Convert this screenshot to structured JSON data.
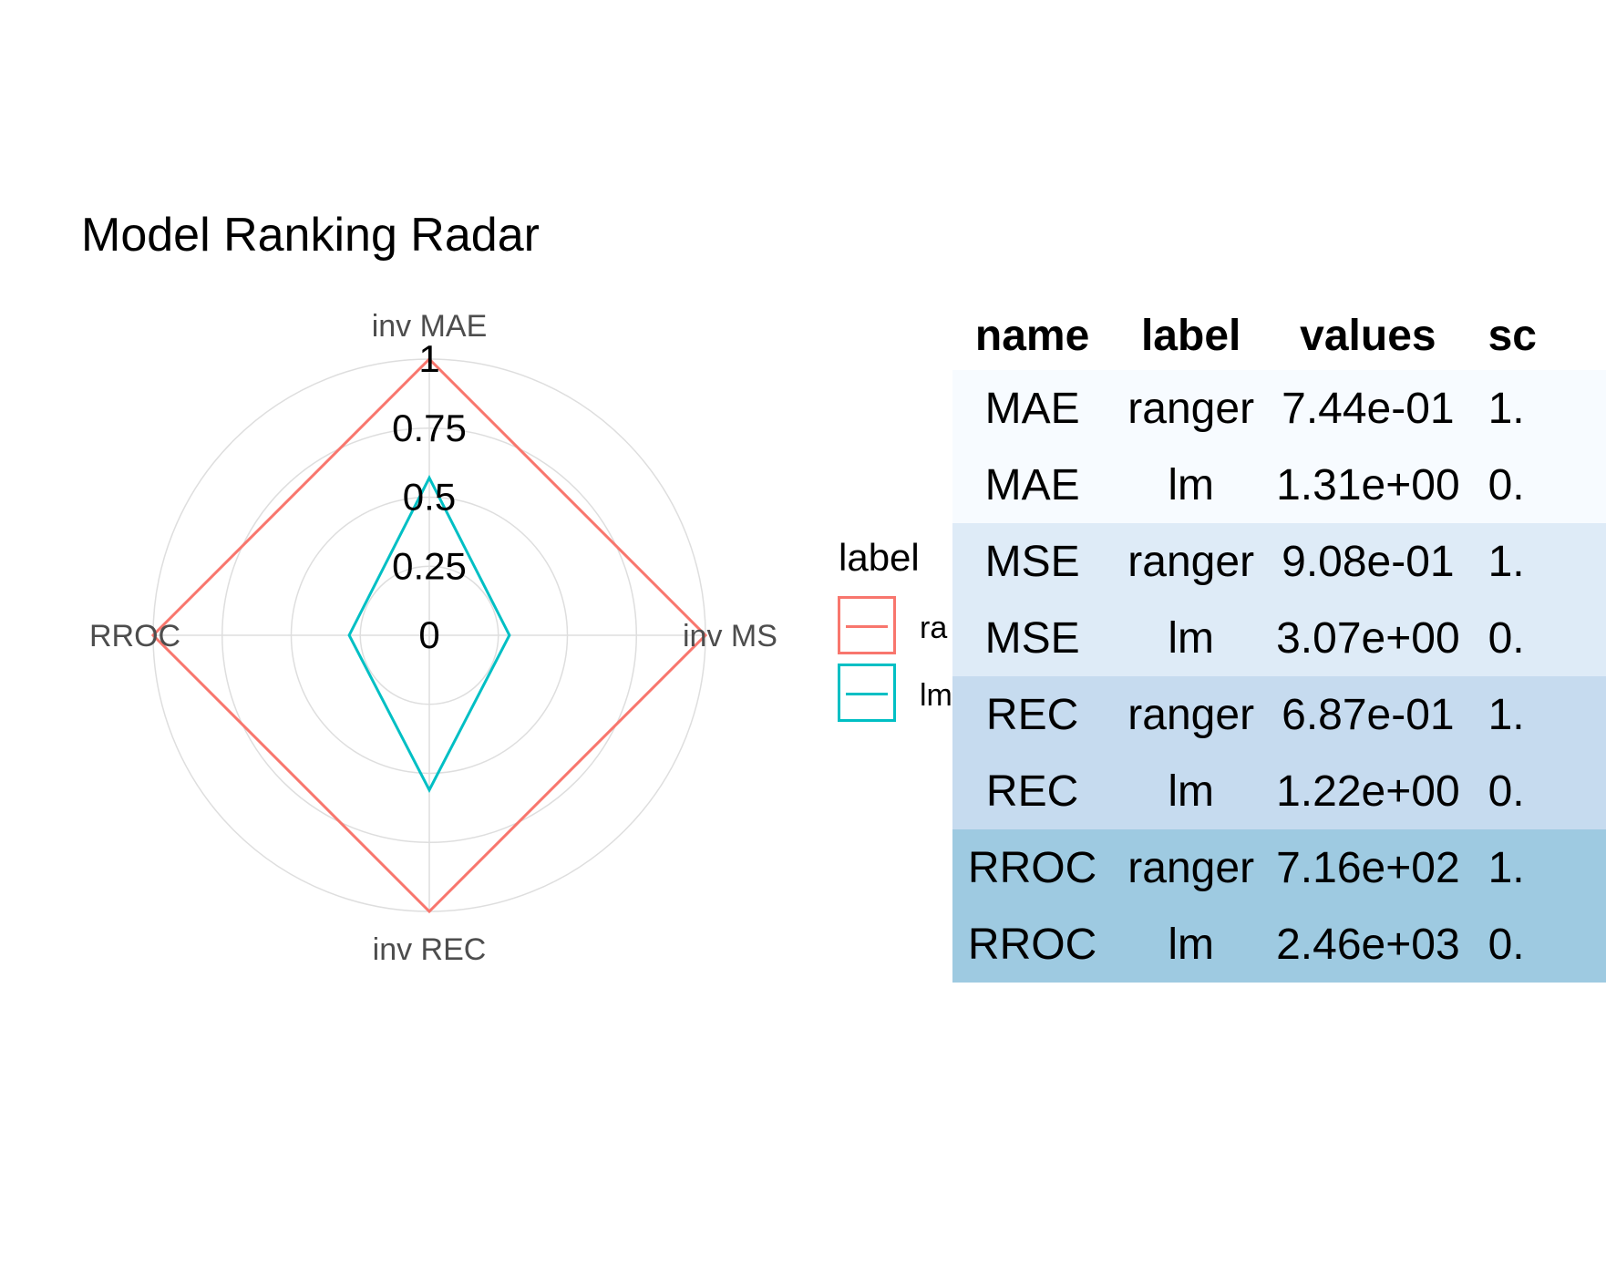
{
  "chart_data": [
    {
      "type": "radar",
      "title": "Model Ranking Radar",
      "axes": [
        "inv MAE",
        "inv MS",
        "inv REC",
        "RROC"
      ],
      "radial_ticks": [
        "0",
        "0.25",
        "0.5",
        "0.75",
        "1"
      ],
      "radial_range": [
        0,
        1
      ],
      "grid": true,
      "legend": {
        "title": "label",
        "position": "right",
        "entries": [
          "ra",
          "lm"
        ]
      },
      "series": [
        {
          "name": "ra",
          "color": "#F8766D",
          "values": [
            1.0,
            1.0,
            1.0,
            1.0
          ]
        },
        {
          "name": "lm",
          "color": "#00BFC4",
          "values": [
            0.57,
            0.29,
            0.56,
            0.29
          ]
        }
      ]
    },
    {
      "type": "table",
      "columns": [
        "name",
        "label",
        "values",
        "sc"
      ],
      "rows": [
        {
          "name": "MAE",
          "label": "ranger",
          "values": "7.44e-01",
          "score": "1.",
          "group": 0
        },
        {
          "name": "MAE",
          "label": "lm",
          "values": "1.31e+00",
          "score": "0.",
          "group": 0
        },
        {
          "name": "MSE",
          "label": "ranger",
          "values": "9.08e-01",
          "score": "1.",
          "group": 1
        },
        {
          "name": "MSE",
          "label": "lm",
          "values": "3.07e+00",
          "score": "0.",
          "group": 1
        },
        {
          "name": "REC",
          "label": "ranger",
          "values": "6.87e-01",
          "score": "1.",
          "group": 2
        },
        {
          "name": "REC",
          "label": "lm",
          "values": "1.22e+00",
          "score": "0.",
          "group": 2
        },
        {
          "name": "RROC",
          "label": "ranger",
          "values": "7.16e+02",
          "score": "1.",
          "group": 3
        },
        {
          "name": "RROC",
          "label": "lm",
          "values": "2.46e+03",
          "score": "0.",
          "group": 3
        }
      ],
      "group_colors": [
        "#F7FBFF",
        "#DEEBF7",
        "#C6DBEF",
        "#9ECAE1"
      ]
    }
  ]
}
